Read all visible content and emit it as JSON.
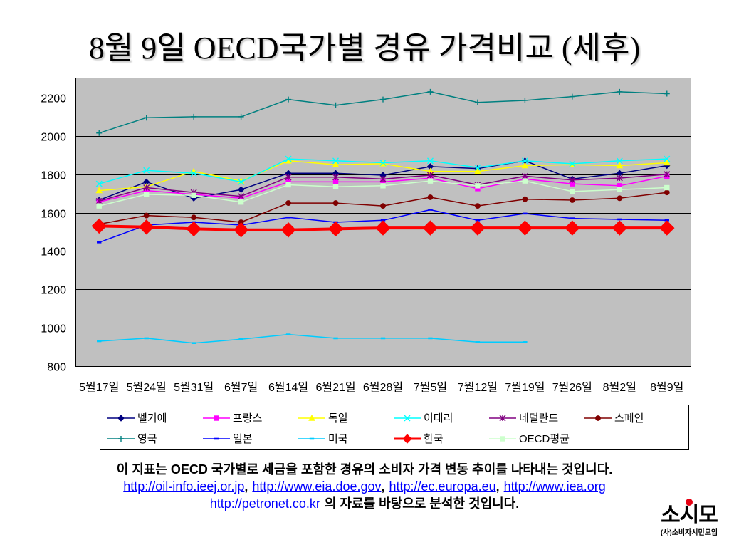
{
  "chart_data": {
    "type": "line",
    "title": "8월 9일 OECD국가별 경유 가격비교 (세후)",
    "categories": [
      "5월17일",
      "5월24일",
      "5월31일",
      "6월7일",
      "6월14일",
      "6월21일",
      "6월28일",
      "7월5일",
      "7월12일",
      "7월19일",
      "7월26일",
      "8월2일",
      "8월9일"
    ],
    "ylim": [
      800,
      2300
    ],
    "yticks": [
      800,
      1000,
      1200,
      1400,
      1600,
      1800,
      2000,
      2200
    ],
    "grid": true,
    "legend": "bottom",
    "plot_background": "#C0C0C0",
    "series": [
      {
        "name": "벨기에",
        "color": "#000080",
        "marker": "diamond",
        "values": [
          1665,
          1760,
          1675,
          1720,
          1805,
          1805,
          1795,
          1840,
          1830,
          1870,
          1775,
          1805,
          1845
        ]
      },
      {
        "name": "프랑스",
        "color": "#FF00FF",
        "marker": "square",
        "values": [
          1655,
          1715,
          1695,
          1675,
          1760,
          1760,
          1760,
          1780,
          1725,
          1775,
          1750,
          1740,
          1790
        ]
      },
      {
        "name": "독일",
        "color": "#FFFF00",
        "marker": "triangle",
        "values": [
          1715,
          1735,
          1815,
          1765,
          1870,
          1850,
          1855,
          1815,
          1815,
          1845,
          1850,
          1845,
          1860
        ]
      },
      {
        "name": "이태리",
        "color": "#00FFFF",
        "marker": "x",
        "values": [
          1750,
          1820,
          1805,
          1760,
          1880,
          1870,
          1860,
          1870,
          1835,
          1870,
          1855,
          1870,
          1880
        ]
      },
      {
        "name": "네덜란드",
        "color": "#800080",
        "marker": "star",
        "values": [
          1660,
          1730,
          1705,
          1685,
          1785,
          1785,
          1775,
          1795,
          1745,
          1790,
          1770,
          1780,
          1800
        ]
      },
      {
        "name": "스페인",
        "color": "#800000",
        "marker": "circle",
        "values": [
          1540,
          1585,
          1575,
          1550,
          1650,
          1650,
          1635,
          1680,
          1635,
          1670,
          1665,
          1675,
          1705
        ]
      },
      {
        "name": "영국",
        "color": "#008080",
        "marker": "plus",
        "values": [
          2015,
          2095,
          2100,
          2100,
          2190,
          2160,
          2190,
          2230,
          2175,
          2185,
          2205,
          2230,
          2220
        ]
      },
      {
        "name": "일본",
        "color": "#0000FF",
        "marker": "dash",
        "values": [
          1445,
          1535,
          1550,
          1535,
          1575,
          1550,
          1560,
          1615,
          1560,
          1595,
          1570,
          1565,
          1560
        ]
      },
      {
        "name": "미국",
        "color": "#00CCFF",
        "marker": "dash",
        "values": [
          930,
          945,
          920,
          940,
          965,
          945,
          945,
          945,
          925,
          925,
          null,
          null,
          null
        ]
      },
      {
        "name": "한국",
        "color": "#FF0000",
        "marker": "diamond",
        "line_style": "bold",
        "values": [
          1530,
          1525,
          1515,
          1510,
          1510,
          1515,
          1520,
          1520,
          1520,
          1520,
          1520,
          1520,
          1520
        ]
      },
      {
        "name": "OECD평균",
        "color": "#CCFFCC",
        "marker": "square",
        "values": [
          1635,
          1695,
          1690,
          1655,
          1745,
          1735,
          1740,
          1765,
          1740,
          1765,
          1710,
          1720,
          1730
        ]
      }
    ]
  },
  "footer": {
    "description": "이 지표는 OECD 국가별로 세금을 포함한 경유의 소비자 가격 변동 추이를 나타내는 것입니다.",
    "sources": [
      "http://oil-info.ieej.or.jp",
      "http://www.eia.doe.gov",
      "http://ec.europa.eu",
      "http://www.iea.org",
      "http://petronet.co.kr"
    ],
    "separator": ",",
    "closing": "의 자료를 바탕으로 분석한 것입니다."
  },
  "logo": {
    "mark": "소시모",
    "caption": "(사)소비자시민모임",
    "accent_color": "#E60012"
  }
}
